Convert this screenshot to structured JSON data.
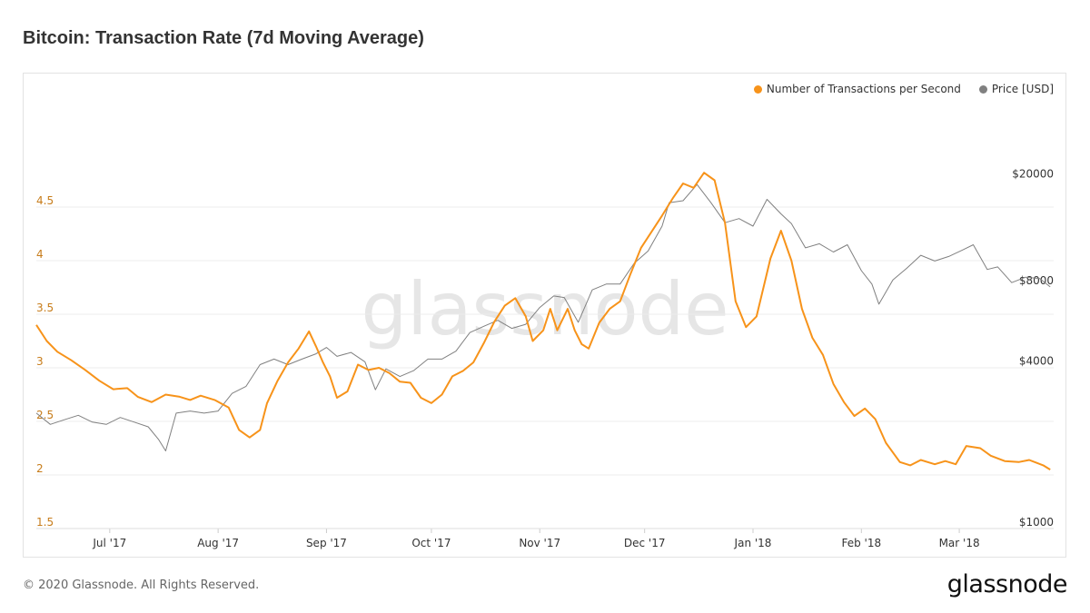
{
  "title": "Bitcoin: Transaction Rate (7d Moving Average)",
  "footer": {
    "copyright": "© 2020 Glassnode. All Rights Reserved.",
    "logo": "glassnode"
  },
  "watermark": "glassnode",
  "colors": {
    "transactions": "#f7931a",
    "price": "#808080",
    "grid": "#ececec",
    "left_axis": "#c77c1a"
  },
  "chart_data": {
    "type": "line",
    "x_ticks": [
      "Jul '17",
      "Aug '17",
      "Sep '17",
      "Oct '17",
      "Nov '17",
      "Dec '17",
      "Jan '18",
      "Feb '18",
      "Mar '18"
    ],
    "x_tick_dates": [
      "2017-07-01",
      "2017-08-01",
      "2017-09-01",
      "2017-10-01",
      "2017-11-01",
      "2017-12-01",
      "2018-01-01",
      "2018-02-01",
      "2018-03-01"
    ],
    "x_range": [
      "2017-06-10",
      "2018-03-28"
    ],
    "y_left": {
      "ticks": [
        "1.5",
        "2",
        "2.5",
        "3",
        "3.5",
        "4",
        "4.5"
      ],
      "range": [
        1.5,
        5.5
      ]
    },
    "y_right": {
      "ticks": [
        "$1000",
        "$4000",
        "$8000",
        "$20000"
      ],
      "tick_values": [
        1000,
        4000,
        8000,
        20000
      ],
      "scale": "log",
      "range": [
        1000,
        40000
      ]
    },
    "legend_position": "top-right",
    "grid": true,
    "series": [
      {
        "name": "Number of Transactions per Second",
        "axis": "left",
        "points": [
          [
            "2017-06-10",
            3.4
          ],
          [
            "2017-06-13",
            3.25
          ],
          [
            "2017-06-16",
            3.15
          ],
          [
            "2017-06-20",
            3.07
          ],
          [
            "2017-06-24",
            2.98
          ],
          [
            "2017-06-28",
            2.88
          ],
          [
            "2017-07-02",
            2.8
          ],
          [
            "2017-07-06",
            2.81
          ],
          [
            "2017-07-09",
            2.73
          ],
          [
            "2017-07-13",
            2.68
          ],
          [
            "2017-07-17",
            2.75
          ],
          [
            "2017-07-21",
            2.73
          ],
          [
            "2017-07-24",
            2.7
          ],
          [
            "2017-07-27",
            2.74
          ],
          [
            "2017-07-31",
            2.7
          ],
          [
            "2017-08-04",
            2.63
          ],
          [
            "2017-08-07",
            2.42
          ],
          [
            "2017-08-10",
            2.35
          ],
          [
            "2017-08-13",
            2.42
          ],
          [
            "2017-08-15",
            2.67
          ],
          [
            "2017-08-18",
            2.88
          ],
          [
            "2017-08-21",
            3.05
          ],
          [
            "2017-08-24",
            3.18
          ],
          [
            "2017-08-27",
            3.34
          ],
          [
            "2017-08-29",
            3.2
          ],
          [
            "2017-08-31",
            3.05
          ],
          [
            "2017-09-02",
            2.92
          ],
          [
            "2017-09-04",
            2.72
          ],
          [
            "2017-09-07",
            2.78
          ],
          [
            "2017-09-10",
            3.03
          ],
          [
            "2017-09-13",
            2.98
          ],
          [
            "2017-09-16",
            3.0
          ],
          [
            "2017-09-19",
            2.95
          ],
          [
            "2017-09-22",
            2.87
          ],
          [
            "2017-09-25",
            2.86
          ],
          [
            "2017-09-28",
            2.72
          ],
          [
            "2017-10-01",
            2.67
          ],
          [
            "2017-10-04",
            2.75
          ],
          [
            "2017-10-07",
            2.92
          ],
          [
            "2017-10-10",
            2.97
          ],
          [
            "2017-10-13",
            3.05
          ],
          [
            "2017-10-16",
            3.23
          ],
          [
            "2017-10-19",
            3.43
          ],
          [
            "2017-10-22",
            3.58
          ],
          [
            "2017-10-25",
            3.65
          ],
          [
            "2017-10-28",
            3.48
          ],
          [
            "2017-10-30",
            3.25
          ],
          [
            "2017-11-02",
            3.35
          ],
          [
            "2017-11-04",
            3.55
          ],
          [
            "2017-11-06",
            3.35
          ],
          [
            "2017-11-09",
            3.55
          ],
          [
            "2017-11-11",
            3.35
          ],
          [
            "2017-11-13",
            3.22
          ],
          [
            "2017-11-15",
            3.18
          ],
          [
            "2017-11-18",
            3.42
          ],
          [
            "2017-11-21",
            3.55
          ],
          [
            "2017-11-24",
            3.62
          ],
          [
            "2017-11-27",
            3.88
          ],
          [
            "2017-11-30",
            4.12
          ],
          [
            "2017-12-03",
            4.27
          ],
          [
            "2017-12-06",
            4.42
          ],
          [
            "2017-12-09",
            4.58
          ],
          [
            "2017-12-12",
            4.72
          ],
          [
            "2017-12-15",
            4.68
          ],
          [
            "2017-12-18",
            4.82
          ],
          [
            "2017-12-21",
            4.75
          ],
          [
            "2017-12-24",
            4.35
          ],
          [
            "2017-12-27",
            3.62
          ],
          [
            "2017-12-30",
            3.38
          ],
          [
            "2018-01-02",
            3.48
          ],
          [
            "2018-01-06",
            4.02
          ],
          [
            "2018-01-09",
            4.28
          ],
          [
            "2018-01-12",
            4.0
          ],
          [
            "2018-01-15",
            3.55
          ],
          [
            "2018-01-18",
            3.28
          ],
          [
            "2018-01-21",
            3.12
          ],
          [
            "2018-01-24",
            2.85
          ],
          [
            "2018-01-27",
            2.68
          ],
          [
            "2018-01-30",
            2.55
          ],
          [
            "2018-02-02",
            2.62
          ],
          [
            "2018-02-05",
            2.52
          ],
          [
            "2018-02-08",
            2.3
          ],
          [
            "2018-02-12",
            2.12
          ],
          [
            "2018-02-15",
            2.09
          ],
          [
            "2018-02-18",
            2.14
          ],
          [
            "2018-02-22",
            2.1
          ],
          [
            "2018-02-25",
            2.13
          ],
          [
            "2018-02-28",
            2.1
          ],
          [
            "2018-03-03",
            2.27
          ],
          [
            "2018-03-07",
            2.25
          ],
          [
            "2018-03-10",
            2.18
          ],
          [
            "2018-03-14",
            2.13
          ],
          [
            "2018-03-18",
            2.12
          ],
          [
            "2018-03-21",
            2.14
          ],
          [
            "2018-03-25",
            2.09
          ],
          [
            "2018-03-27",
            2.05
          ]
        ]
      },
      {
        "name": "Price [USD]",
        "axis": "right",
        "points": [
          [
            "2017-06-10",
            2700
          ],
          [
            "2017-06-14",
            2450
          ],
          [
            "2017-06-18",
            2550
          ],
          [
            "2017-06-22",
            2650
          ],
          [
            "2017-06-26",
            2500
          ],
          [
            "2017-06-30",
            2450
          ],
          [
            "2017-07-04",
            2600
          ],
          [
            "2017-07-08",
            2500
          ],
          [
            "2017-07-12",
            2400
          ],
          [
            "2017-07-15",
            2150
          ],
          [
            "2017-07-17",
            1950
          ],
          [
            "2017-07-20",
            2700
          ],
          [
            "2017-07-24",
            2750
          ],
          [
            "2017-07-28",
            2700
          ],
          [
            "2017-08-01",
            2750
          ],
          [
            "2017-08-05",
            3200
          ],
          [
            "2017-08-09",
            3400
          ],
          [
            "2017-08-13",
            4100
          ],
          [
            "2017-08-17",
            4300
          ],
          [
            "2017-08-21",
            4100
          ],
          [
            "2017-08-25",
            4300
          ],
          [
            "2017-08-29",
            4500
          ],
          [
            "2017-09-01",
            4750
          ],
          [
            "2017-09-04",
            4400
          ],
          [
            "2017-09-08",
            4550
          ],
          [
            "2017-09-12",
            4200
          ],
          [
            "2017-09-15",
            3300
          ],
          [
            "2017-09-18",
            3950
          ],
          [
            "2017-09-22",
            3700
          ],
          [
            "2017-09-26",
            3900
          ],
          [
            "2017-09-30",
            4300
          ],
          [
            "2017-10-04",
            4300
          ],
          [
            "2017-10-08",
            4600
          ],
          [
            "2017-10-12",
            5400
          ],
          [
            "2017-10-16",
            5700
          ],
          [
            "2017-10-20",
            6000
          ],
          [
            "2017-10-24",
            5600
          ],
          [
            "2017-10-28",
            5800
          ],
          [
            "2017-11-01",
            6700
          ],
          [
            "2017-11-05",
            7400
          ],
          [
            "2017-11-08",
            7300
          ],
          [
            "2017-11-12",
            5900
          ],
          [
            "2017-11-16",
            7800
          ],
          [
            "2017-11-20",
            8200
          ],
          [
            "2017-11-24",
            8200
          ],
          [
            "2017-11-28",
            9800
          ],
          [
            "2017-12-02",
            10900
          ],
          [
            "2017-12-06",
            13500
          ],
          [
            "2017-12-08",
            16500
          ],
          [
            "2017-12-12",
            16800
          ],
          [
            "2017-12-16",
            19300
          ],
          [
            "2017-12-20",
            16500
          ],
          [
            "2017-12-24",
            13900
          ],
          [
            "2017-12-28",
            14400
          ],
          [
            "2018-01-01",
            13500
          ],
          [
            "2018-01-05",
            17000
          ],
          [
            "2018-01-09",
            15000
          ],
          [
            "2018-01-12",
            13800
          ],
          [
            "2018-01-16",
            11200
          ],
          [
            "2018-01-20",
            11600
          ],
          [
            "2018-01-24",
            10800
          ],
          [
            "2018-01-28",
            11500
          ],
          [
            "2018-02-01",
            9200
          ],
          [
            "2018-02-04",
            8200
          ],
          [
            "2018-02-06",
            6900
          ],
          [
            "2018-02-10",
            8500
          ],
          [
            "2018-02-14",
            9400
          ],
          [
            "2018-02-18",
            10500
          ],
          [
            "2018-02-22",
            10000
          ],
          [
            "2018-02-26",
            10400
          ],
          [
            "2018-03-02",
            11000
          ],
          [
            "2018-03-05",
            11500
          ],
          [
            "2018-03-09",
            9300
          ],
          [
            "2018-03-12",
            9500
          ],
          [
            "2018-03-16",
            8300
          ],
          [
            "2018-03-20",
            8700
          ],
          [
            "2018-03-24",
            8600
          ],
          [
            "2018-03-27",
            8000
          ]
        ]
      }
    ]
  }
}
